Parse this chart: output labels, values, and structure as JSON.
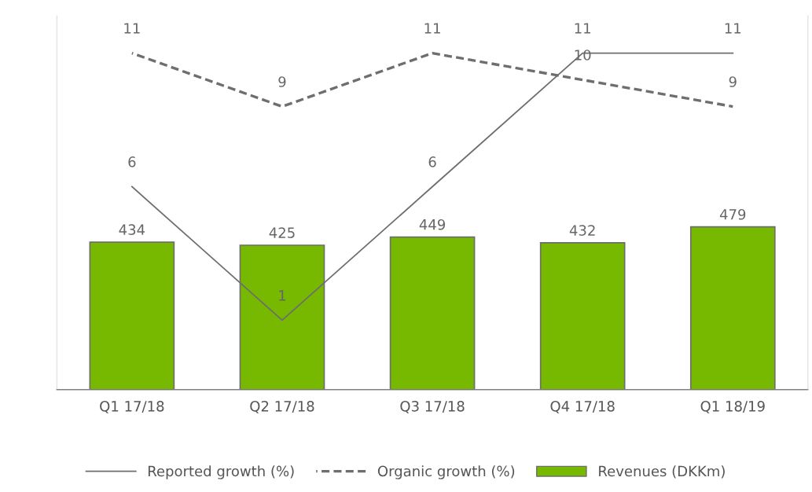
{
  "chart_data": {
    "type": "bar",
    "categories": [
      "Q1 17/18",
      "Q2 17/18",
      "Q3 17/18",
      "Q4 17/18",
      "Q1 18/19"
    ],
    "series": [
      {
        "name": "Reported growth (%)",
        "type": "line",
        "axis": "y2",
        "color": "#6e6e6e",
        "line_style": "solid",
        "values": [
          6,
          1,
          6,
          11,
          11
        ]
      },
      {
        "name": "Organic growth (%)",
        "type": "line",
        "axis": "y2",
        "color": "#6e6e6e",
        "line_style": "dashed",
        "values": [
          11,
          9,
          11,
          10,
          9
        ]
      },
      {
        "name": "Revenues (DKKm)",
        "color": "#76b900",
        "values": [
          434,
          425,
          449,
          432,
          479
        ]
      }
    ],
    "ylim": [
      0,
      1100
    ],
    "y2lim": [
      -1.6,
      12.4
    ],
    "tick_labels": "x",
    "data_labels": true,
    "legend": "bottom",
    "grid": false,
    "marker": "none"
  }
}
